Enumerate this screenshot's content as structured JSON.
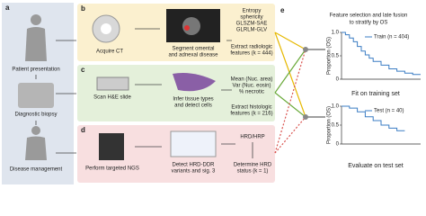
{
  "panels": {
    "a": {
      "label": "a",
      "steps": [
        "Patient presentation",
        "Diagnostic biopsy",
        "Disease management"
      ]
    },
    "b": {
      "label": "b",
      "step1": "Acquire CT",
      "step2": [
        "Segment omental",
        "and adnexal disease"
      ],
      "features": [
        "Entropy",
        "sphericity",
        "GLSZM-SAE",
        "GLRLM-GLV"
      ],
      "step3": [
        "Extract radiologic",
        "features (k = 444)"
      ]
    },
    "c": {
      "label": "c",
      "step1": "Scan H&E slide",
      "step2": [
        "Infer tissue types",
        "and detect cells"
      ],
      "features": [
        "Mean (Nuc. area)",
        "Var (Nuc. eosin)",
        "% necrotic"
      ],
      "step3": [
        "Extract histologic",
        "features (k = 216)"
      ]
    },
    "d": {
      "label": "d",
      "step1": "Perform targeted NGS",
      "step2": [
        "Detect HRD-DDR",
        "variants and sig. 3"
      ],
      "result": "HRD/HRP",
      "step3": [
        "Determine HRD",
        "status (k = 1)"
      ]
    },
    "e": {
      "label": "e",
      "title": [
        "Feature selection and late fusion",
        "to stratify by OS"
      ],
      "charts": [
        {
          "type": "line",
          "ylabel": "Proportion (OS)",
          "caption": "Fit on training set",
          "xlim": [
            0,
            10
          ],
          "ylim": [
            0,
            1
          ],
          "yticks": [
            0,
            0.5,
            {
              "value": 1,
              "label": "1.0"
            }
          ],
          "series": [
            {
              "name": "Train (n = 404)",
              "color": "#3b7dc4",
              "x": [
                0,
                0.5,
                1,
                1.5,
                2,
                2.5,
                3,
                3.5,
                4,
                5,
                6,
                7,
                8,
                9,
                10
              ],
              "values": [
                1,
                0.95,
                0.88,
                0.8,
                0.7,
                0.6,
                0.52,
                0.45,
                0.38,
                0.3,
                0.22,
                0.17,
                0.13,
                0.1,
                0.1
              ]
            }
          ]
        },
        {
          "type": "line",
          "ylabel": "Proportion (OS)",
          "caption": "Evaluate on test set",
          "xlim": [
            0,
            10
          ],
          "ylim": [
            0,
            1
          ],
          "yticks": [
            0,
            0.5,
            {
              "value": 1,
              "label": "1.0"
            }
          ],
          "series": [
            {
              "name": "Test (n = 40)",
              "color": "#3b7dc4",
              "x": [
                0,
                1,
                2,
                3,
                4,
                5,
                6,
                7,
                8
              ],
              "values": [
                1,
                0.95,
                0.85,
                0.72,
                0.62,
                0.5,
                0.42,
                0.35,
                0.35
              ]
            }
          ]
        }
      ]
    }
  }
}
